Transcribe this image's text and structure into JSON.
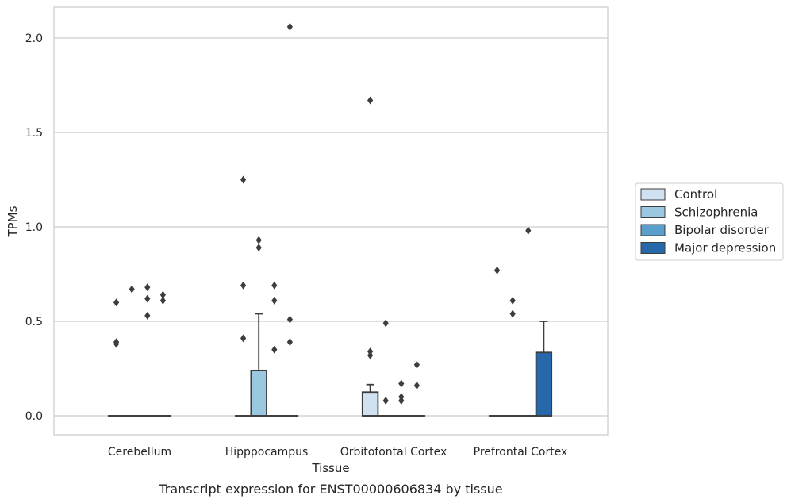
{
  "caption": "Transcript expression for ENST00000606834 by tissue",
  "chart_data": {
    "type": "box",
    "title": "",
    "xlabel": "Tissue",
    "ylabel": "TPMs",
    "ylim": [
      -0.1,
      2.17
    ],
    "yticks": [
      0.0,
      0.5,
      1.0,
      1.5,
      2.0
    ],
    "ytick_labels": [
      "0.0",
      "0.5",
      "1.0",
      "1.5",
      "2.0"
    ],
    "grid": "horizontal",
    "legend_placement": "right",
    "categories": [
      "Cerebellum",
      "Hipppocampus",
      "Orbitofontal Cortex",
      "Prefrontal Cortex"
    ],
    "series": [
      {
        "name": "Control",
        "color": "#d0e1f2",
        "boxes": [
          {
            "q1": 0,
            "median": 0,
            "q3": 0,
            "whislo": 0,
            "whishi": 0,
            "fliers": [
              0.38,
              0.39,
              0.6
            ]
          },
          {
            "q1": 0,
            "median": 0,
            "q3": 0,
            "whislo": 0,
            "whishi": 0,
            "fliers": [
              0.41,
              0.69,
              1.25
            ]
          },
          {
            "q1": 0,
            "median": 0,
            "q3": 0.125,
            "whislo": 0,
            "whishi": 0.165,
            "fliers": [
              0.32,
              0.34,
              1.67
            ]
          },
          {
            "q1": 0,
            "median": 0,
            "q3": 0,
            "whislo": 0,
            "whishi": 0,
            "fliers": [
              0.77
            ]
          }
        ]
      },
      {
        "name": "Schizophrenia",
        "color": "#9ac8e0",
        "boxes": [
          {
            "q1": 0,
            "median": 0,
            "q3": 0,
            "whislo": 0,
            "whishi": 0,
            "fliers": [
              0.67
            ]
          },
          {
            "q1": 0,
            "median": 0,
            "q3": 0.24,
            "whislo": 0,
            "whishi": 0.54,
            "fliers": [
              0.89,
              0.93
            ]
          },
          {
            "q1": 0,
            "median": 0,
            "q3": 0,
            "whislo": 0,
            "whishi": 0,
            "fliers": [
              0.08,
              0.49
            ]
          },
          {
            "q1": 0,
            "median": 0,
            "q3": 0,
            "whislo": 0,
            "whishi": 0,
            "fliers": [
              0.54,
              0.61
            ]
          }
        ]
      },
      {
        "name": "Bipolar disorder",
        "color": "#5a9ecb",
        "boxes": [
          {
            "q1": 0,
            "median": 0,
            "q3": 0,
            "whislo": 0,
            "whishi": 0,
            "fliers": [
              0.53,
              0.62,
              0.68
            ]
          },
          {
            "q1": 0,
            "median": 0,
            "q3": 0,
            "whislo": 0,
            "whishi": 0,
            "fliers": [
              0.35,
              0.61,
              0.69
            ]
          },
          {
            "q1": 0,
            "median": 0,
            "q3": 0,
            "whislo": 0,
            "whishi": 0,
            "fliers": [
              0.08,
              0.1,
              0.17
            ]
          },
          {
            "q1": 0,
            "median": 0,
            "q3": 0,
            "whislo": 0,
            "whishi": 0,
            "fliers": [
              0.98
            ]
          }
        ]
      },
      {
        "name": "Major depression",
        "color": "#2668aa",
        "boxes": [
          {
            "q1": 0,
            "median": 0,
            "q3": 0,
            "whislo": 0,
            "whishi": 0,
            "fliers": [
              0.61,
              0.64
            ]
          },
          {
            "q1": 0,
            "median": 0,
            "q3": 0,
            "whislo": 0,
            "whishi": 0,
            "fliers": [
              0.39,
              0.51,
              2.06
            ]
          },
          {
            "q1": 0,
            "median": 0,
            "q3": 0,
            "whislo": 0,
            "whishi": 0,
            "fliers": [
              0.16,
              0.27
            ]
          },
          {
            "q1": 0,
            "median": 0,
            "q3": 0.335,
            "whislo": 0,
            "whishi": 0.5,
            "fliers": []
          }
        ]
      }
    ]
  }
}
